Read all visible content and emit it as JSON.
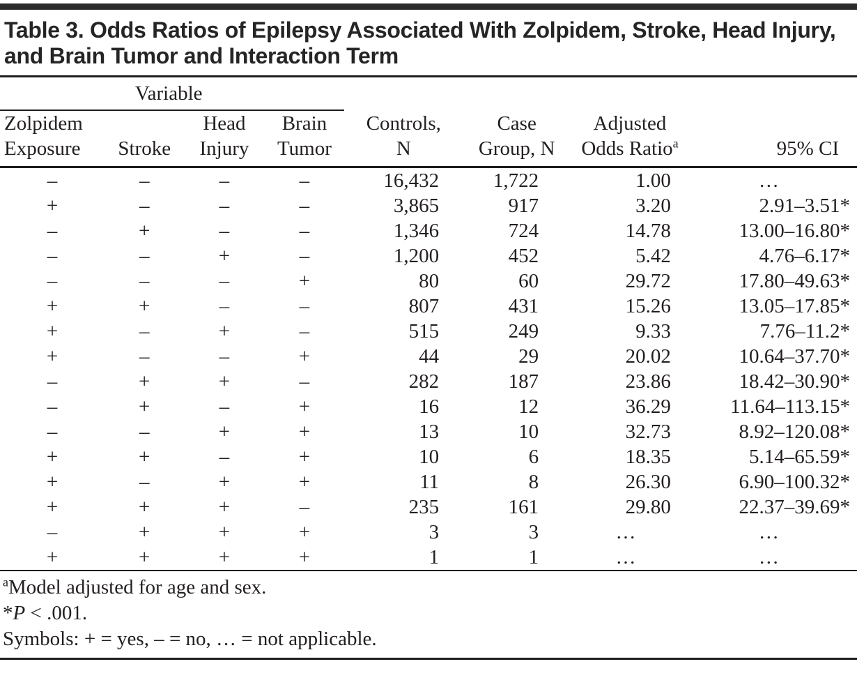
{
  "page": {
    "background": "#ffffff",
    "text_color": "#231f20",
    "rule_color": "#1d1d1d",
    "topbar_color": "#2b2b2b"
  },
  "table": {
    "title": "Table 3. Odds Ratios of Epilepsy Associated With Zolpidem, Stroke, Head Injury, and Brain Tumor and Interaction Term",
    "variable_spanner": "Variable",
    "headers": [
      {
        "lines": [
          "Zolpidem",
          "Exposure"
        ],
        "align": "left"
      },
      {
        "lines": [
          "Stroke"
        ],
        "align": "center"
      },
      {
        "lines": [
          "Head",
          "Injury"
        ],
        "align": "center"
      },
      {
        "lines": [
          "Brain",
          "Tumor"
        ],
        "align": "center"
      },
      {
        "lines": [
          "Controls,",
          "N"
        ],
        "align": "center"
      },
      {
        "lines": [
          "Case",
          "Group, N"
        ],
        "align": "center"
      },
      {
        "lines": [
          "Adjusted",
          "Odds Ratio"
        ],
        "superscript": "a",
        "align": "center"
      },
      {
        "lines": [
          "95% CI"
        ],
        "align": "right"
      }
    ],
    "rows": [
      [
        "–",
        "–",
        "–",
        "–",
        "16,432",
        "1,722",
        "1.00",
        "…"
      ],
      [
        "+",
        "–",
        "–",
        "–",
        "3,865",
        "917",
        "3.20",
        "2.91–3.51*"
      ],
      [
        "–",
        "+",
        "–",
        "–",
        "1,346",
        "724",
        "14.78",
        "13.00–16.80*"
      ],
      [
        "–",
        "–",
        "+",
        "–",
        "1,200",
        "452",
        "5.42",
        "4.76–6.17*"
      ],
      [
        "–",
        "–",
        "–",
        "+",
        "80",
        "60",
        "29.72",
        "17.80–49.63*"
      ],
      [
        "+",
        "+",
        "–",
        "–",
        "807",
        "431",
        "15.26",
        "13.05–17.85*"
      ],
      [
        "+",
        "–",
        "+",
        "–",
        "515",
        "249",
        "9.33",
        "7.76–11.2*"
      ],
      [
        "+",
        "–",
        "–",
        "+",
        "44",
        "29",
        "20.02",
        "10.64–37.70*"
      ],
      [
        "–",
        "+",
        "+",
        "–",
        "282",
        "187",
        "23.86",
        "18.42–30.90*"
      ],
      [
        "–",
        "+",
        "–",
        "+",
        "16",
        "12",
        "36.29",
        "11.64–113.15*"
      ],
      [
        "–",
        "–",
        "+",
        "+",
        "13",
        "10",
        "32.73",
        "8.92–120.08*"
      ],
      [
        "+",
        "+",
        "–",
        "+",
        "10",
        "6",
        "18.35",
        "5.14–65.59*"
      ],
      [
        "+",
        "–",
        "+",
        "+",
        "11",
        "8",
        "26.30",
        "6.90–100.32*"
      ],
      [
        "+",
        "+",
        "+",
        "–",
        "235",
        "161",
        "29.80",
        "22.37–39.69*"
      ],
      [
        "–",
        "+",
        "+",
        "+",
        "3",
        "3",
        "…",
        "…"
      ],
      [
        "+",
        "+",
        "+",
        "+",
        "1",
        "1",
        "…",
        "…"
      ]
    ],
    "footnotes": [
      {
        "segments": [
          {
            "text": "a",
            "style": "sup"
          },
          {
            "text": "Model adjusted for age and sex.",
            "style": "normal"
          }
        ]
      },
      {
        "segments": [
          {
            "text": "*",
            "style": "normal"
          },
          {
            "text": "P",
            "style": "italic"
          },
          {
            "text": " < .001.",
            "style": "normal"
          }
        ]
      },
      {
        "segments": [
          {
            "text": "Symbols: + = yes, – = no, … = not applicable.",
            "style": "normal"
          }
        ]
      }
    ]
  }
}
